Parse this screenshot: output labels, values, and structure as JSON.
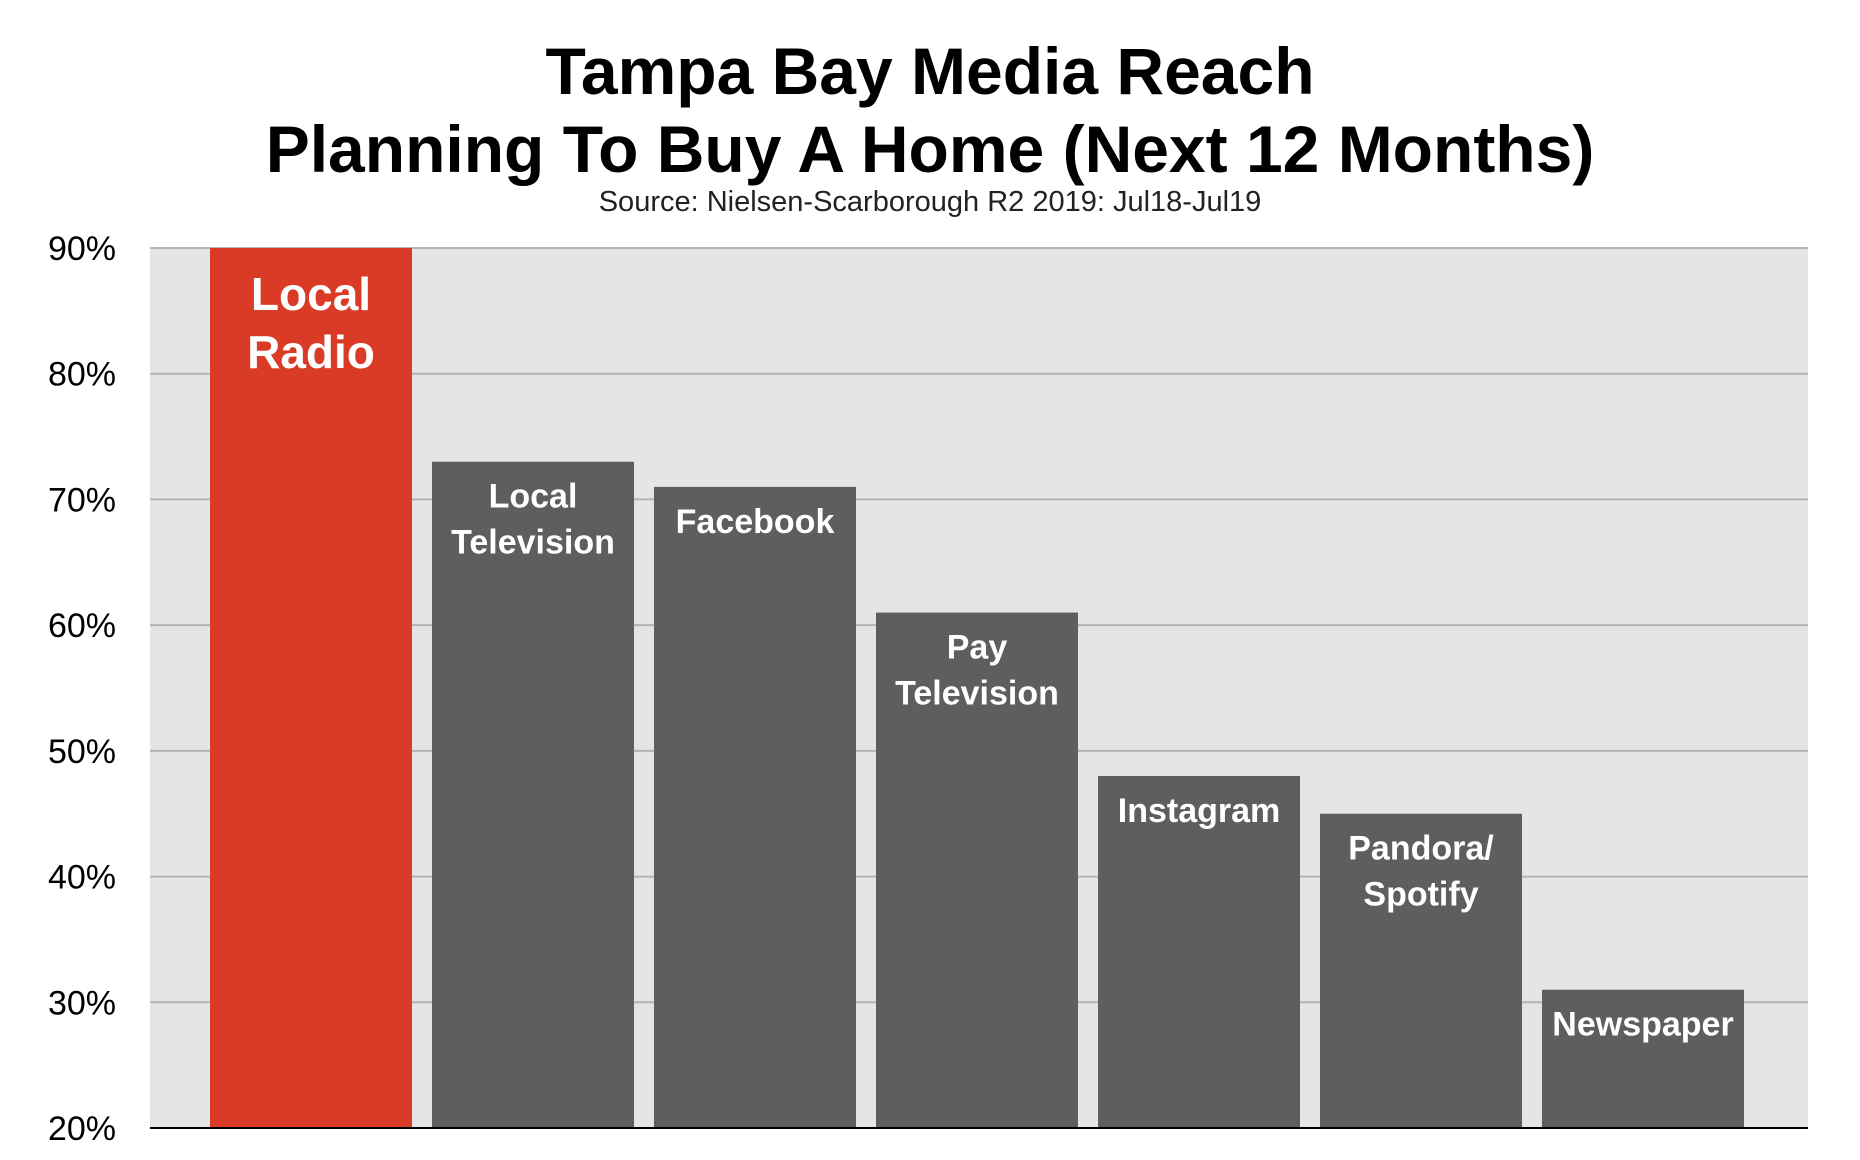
{
  "chart_data": {
    "type": "bar",
    "title_lines": [
      "Tampa Bay Media Reach",
      "Planning To Buy A Home (Next 12 Months)"
    ],
    "subtitle": "Source: Nielsen-Scarborough R2 2019: Jul18-Jul19",
    "xlabel": "",
    "ylabel": "",
    "ylim": [
      20,
      90
    ],
    "yticks": [
      20,
      30,
      40,
      50,
      60,
      70,
      80,
      90
    ],
    "ytick_labels": [
      "20%",
      "30%",
      "40%",
      "50%",
      "60%",
      "70%",
      "80%",
      "90%"
    ],
    "grid": true,
    "categories": [
      [
        "Local",
        "Radio"
      ],
      [
        "Local",
        "Television"
      ],
      [
        "Facebook"
      ],
      [
        "Pay",
        "Television"
      ],
      [
        "Instagram"
      ],
      [
        "Pandora/",
        "Spotify"
      ],
      [
        "Newspaper"
      ]
    ],
    "values": [
      90,
      73,
      71,
      61,
      48,
      45,
      31
    ],
    "bar_colors": [
      "#d93b26",
      "#5e5e5e",
      "#5e5e5e",
      "#5e5e5e",
      "#5e5e5e",
      "#5e5e5e",
      "#5e5e5e"
    ],
    "plot_background": "#e5e5e8",
    "grid_color": "#b4b4b6"
  }
}
